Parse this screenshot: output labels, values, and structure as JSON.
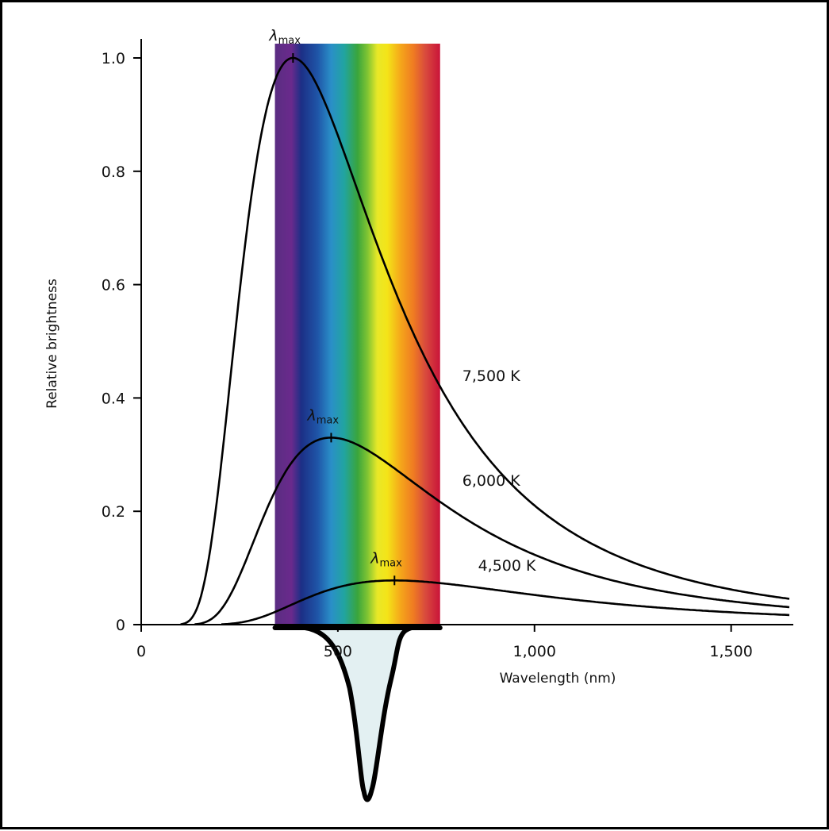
{
  "chart_data": {
    "type": "line",
    "title": "",
    "xlabel": "Wavelength (nm)",
    "ylabel": "Relative brightness",
    "xlim": [
      0,
      1650
    ],
    "ylim": [
      0,
      1.05
    ],
    "x_ticks": [
      {
        "value": 0,
        "label": "0"
      },
      {
        "value": 500,
        "label": "500"
      },
      {
        "value": 1000,
        "label": "1,000"
      },
      {
        "value": 1500,
        "label": "1,500"
      }
    ],
    "y_ticks": [
      {
        "value": 0,
        "label": "0"
      },
      {
        "value": 0.2,
        "label": "0.2"
      },
      {
        "value": 0.4,
        "label": "0.4"
      },
      {
        "value": 0.6,
        "label": "0.6"
      },
      {
        "value": 0.8,
        "label": "0.8"
      },
      {
        "value": 1.0,
        "label": "1.0"
      }
    ],
    "grid": false,
    "visible_band": [
      340,
      760
    ],
    "peak_marker": {
      "symbol": "λ",
      "subscript": "max"
    },
    "series": [
      {
        "name": "7,500 K",
        "temperature_k": 7500,
        "peak_x": 386,
        "peak_y": 1.0,
        "label_at": [
          760,
          0.43
        ]
      },
      {
        "name": "6,000 K",
        "temperature_k": 6000,
        "peak_x": 483,
        "peak_y": 0.33,
        "label_at": [
          760,
          0.245
        ]
      },
      {
        "name": "4,500 K",
        "temperature_k": 4500,
        "peak_x": 644,
        "peak_y": 0.078,
        "label_at": [
          800,
          0.095
        ]
      }
    ]
  }
}
